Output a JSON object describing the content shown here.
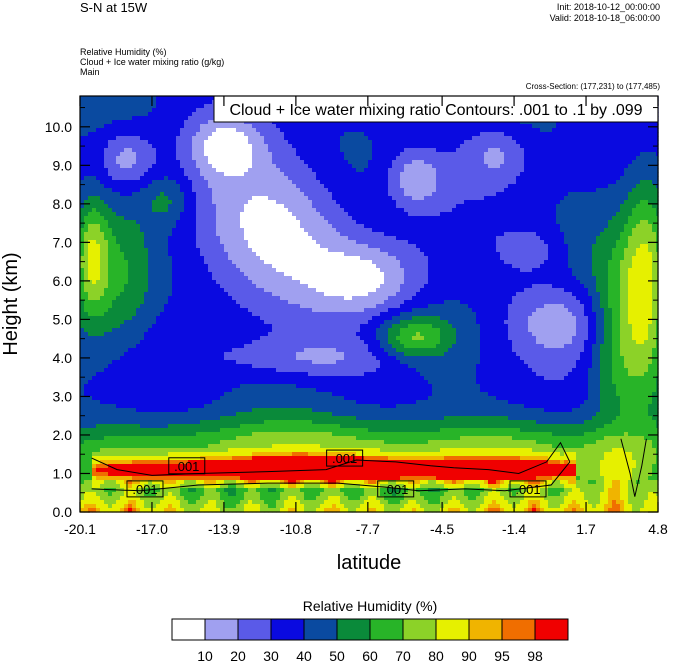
{
  "header": {
    "title": "S-N at 15W",
    "init": "Init: 2018-10-12_00:00:00",
    "valid": "Valid: 2018-10-18_06:00:00",
    "var1": "Relative Humidity   (%)",
    "var2": "Cloud + Ice water mixing ratio   (g/kg)",
    "var3": "Main",
    "cross_section": "Cross-Section: (177,231) to (177,485)"
  },
  "chart_data": {
    "type": "heatmap",
    "title": "S-N at 15W",
    "contour_label": "Cloud + Ice water mixing ratio Contours: .001 to .1 by .099",
    "xlabel": "latitude",
    "ylabel": "Height (km)",
    "xlim": [
      -20.1,
      4.8
    ],
    "ylim": [
      0.0,
      10.8
    ],
    "x_ticks": [
      "-20.1",
      "-17.0",
      "-13.9",
      "-10.8",
      "-7.7",
      "-4.5",
      "-1.4",
      "1.7",
      "4.8"
    ],
    "y_ticks": [
      "0.0",
      "1.0",
      "2.0",
      "3.0",
      "4.0",
      "5.0",
      "6.0",
      "7.0",
      "8.0",
      "9.0",
      "10.0"
    ],
    "contour_labels": [
      {
        "text": ".001",
        "lat": -15.5,
        "h": 1.2
      },
      {
        "text": ".001",
        "lat": -8.7,
        "h": 1.4
      },
      {
        "text": ".001",
        "lat": -17.3,
        "h": 0.6
      },
      {
        "text": ".001",
        "lat": -6.5,
        "h": 0.6
      },
      {
        "text": ".001",
        "lat": -0.8,
        "h": 0.6
      }
    ],
    "colorbar": {
      "title": "Relative Humidity  (%)",
      "levels": [
        "10",
        "20",
        "30",
        "40",
        "50",
        "60",
        "70",
        "80",
        "90",
        "95",
        "98"
      ],
      "colors": [
        "#ffffff",
        "#a0a0f0",
        "#5a5ae8",
        "#0a0ae0",
        "#0a4aa0",
        "#0a8a3a",
        "#28b428",
        "#8cd228",
        "#e6f000",
        "#f0b400",
        "#f06e00",
        "#f00000"
      ]
    }
  }
}
